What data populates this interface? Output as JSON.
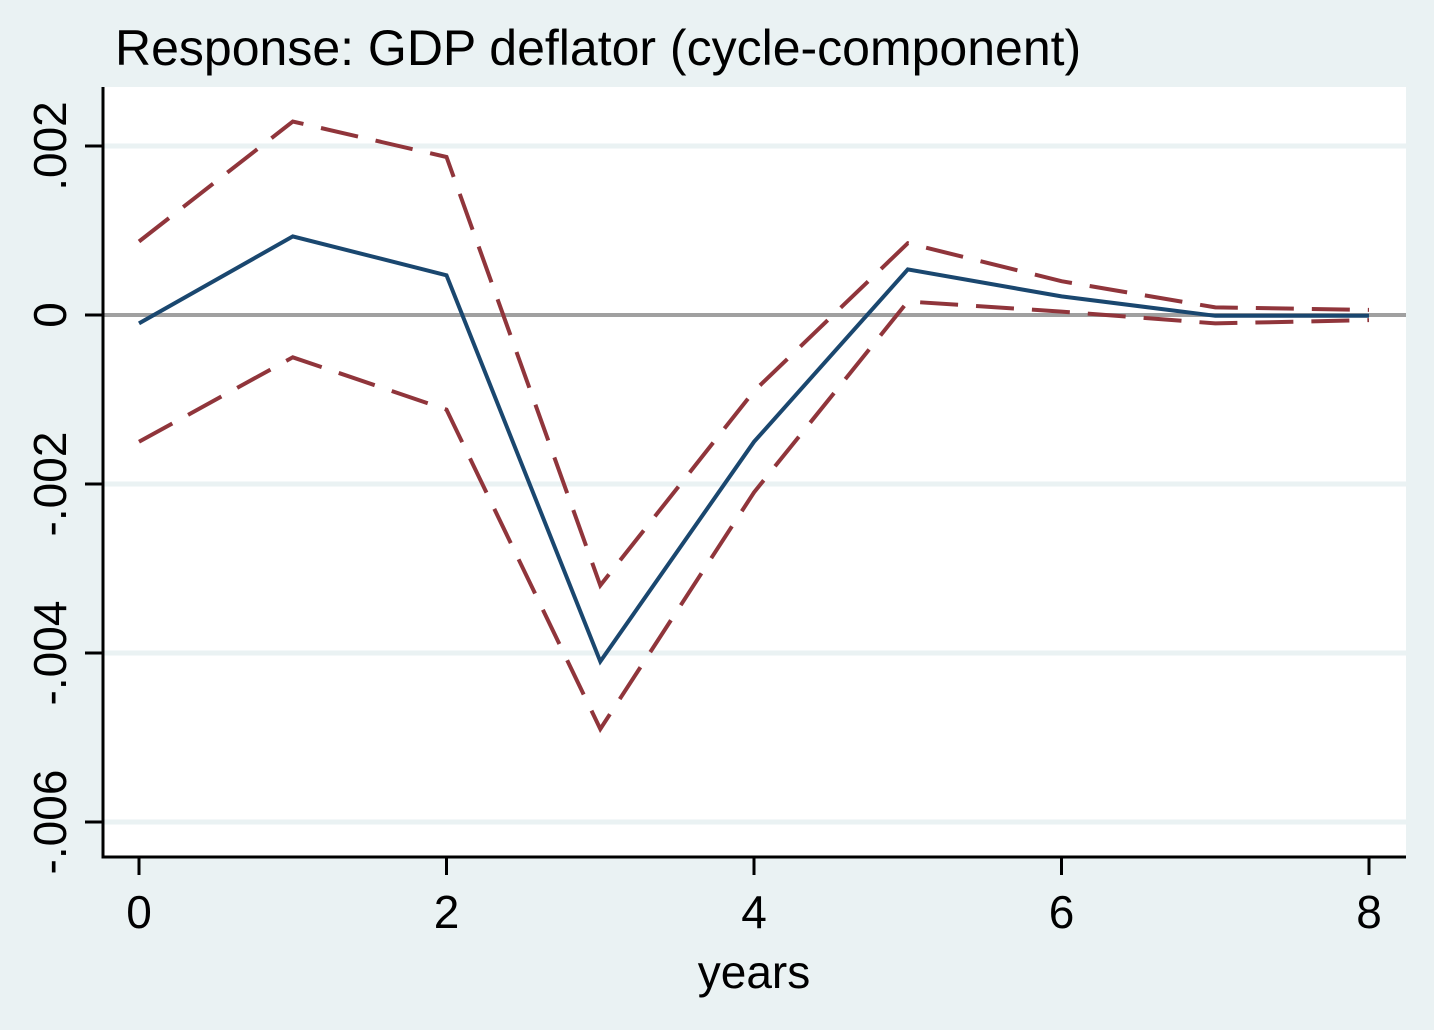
{
  "chart_data": {
    "type": "line",
    "title": "Response: GDP deflator (cycle-component)",
    "xlabel": "years",
    "ylabel": "",
    "x": [
      0,
      1,
      2,
      3,
      4,
      5,
      6,
      7,
      8
    ],
    "xlim": [
      -0.1,
      8.1
    ],
    "ylim": [
      -0.0064,
      0.0027
    ],
    "xticks": [
      0,
      2,
      4,
      6,
      8
    ],
    "xtick_labels": [
      "0",
      "2",
      "4",
      "6",
      "8"
    ],
    "yticks": [
      -0.006,
      -0.004,
      -0.002,
      0,
      0.002
    ],
    "ytick_labels": [
      "-.006",
      "-.004",
      "-.002",
      "0",
      ".002"
    ],
    "grid": true,
    "reference_line": 0,
    "series": [
      {
        "role": "estimate",
        "style": "solid",
        "color": "#1a476f",
        "values": [
          -0.0001,
          0.00093,
          0.00047,
          -0.0041,
          -0.0015,
          0.00054,
          0.00022,
          -1e-05,
          -1e-05
        ]
      },
      {
        "role": "upper-band",
        "style": "dashed",
        "color": "#90353b",
        "values": [
          0.00087,
          0.00229,
          0.00187,
          -0.0032,
          -0.0009,
          0.00085,
          0.0004,
          9e-05,
          6e-05
        ]
      },
      {
        "role": "lower-band",
        "style": "dashed",
        "color": "#90353b",
        "values": [
          -0.0015,
          -0.0005,
          -0.00112,
          -0.0049,
          -0.0021,
          0.00016,
          4e-05,
          -0.0001,
          -6e-05
        ]
      }
    ],
    "colors": {
      "background": "#eaf2f3",
      "plot_background": "#ffffff",
      "grid": "#eaf2f3",
      "zero_line": "#a0a0a0",
      "axis": "#000000"
    }
  }
}
